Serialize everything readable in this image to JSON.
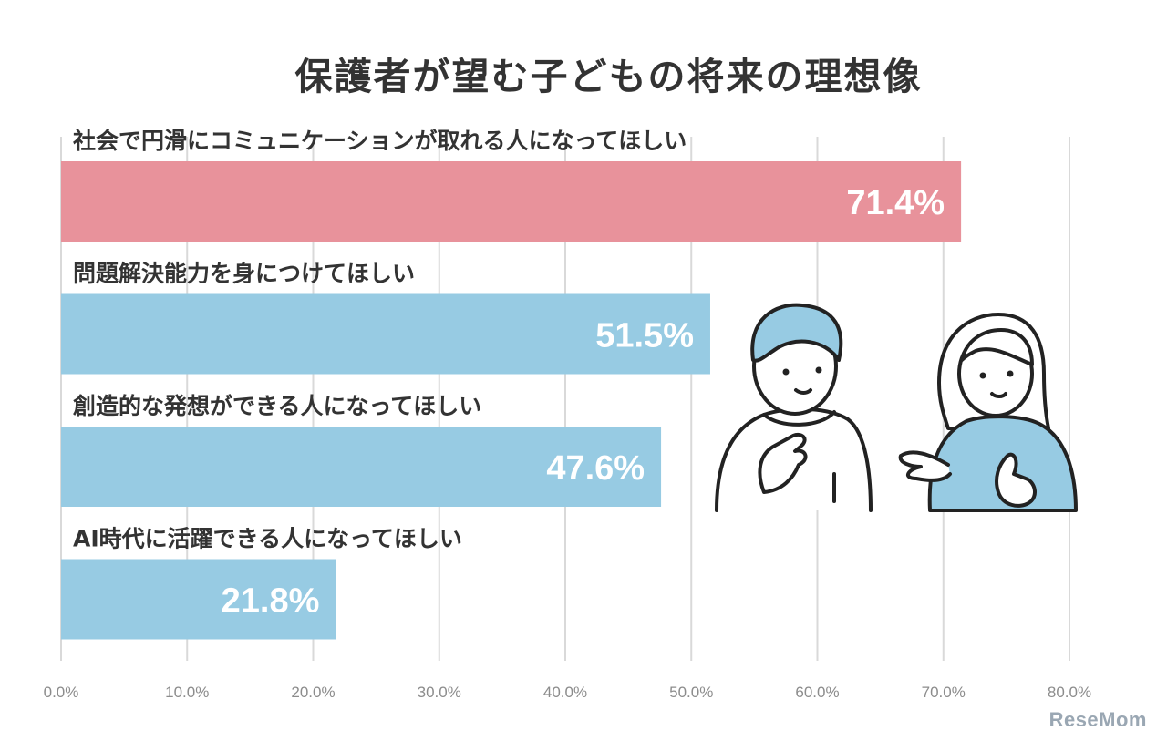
{
  "colors": {
    "highlight": "#e8929b",
    "bar": "#97cbe3",
    "grid": "#d9d9d9",
    "value_label": "#ffffff",
    "category_label": "#333333",
    "tick_label": "#8c8c8c",
    "title": "#333333"
  },
  "watermark": "ReseMom",
  "chart_data": {
    "type": "bar",
    "orientation": "horizontal",
    "title": "保護者が望む子どもの将来の理想像",
    "categories": [
      "社会で円滑にコミュニケーションが取れる人になってほしい",
      "問題解決能力を身につけてほしい",
      "創造的な発想ができる人になってほしい",
      "AI時代に活躍できる人になってほしい"
    ],
    "values": [
      71.4,
      51.5,
      47.6,
      21.8
    ],
    "value_labels": [
      "71.4%",
      "51.5%",
      "47.6%",
      "21.8%"
    ],
    "highlight_index": 0,
    "xlim": [
      0,
      80
    ],
    "x_ticks": [
      0,
      10,
      20,
      30,
      40,
      50,
      60,
      70,
      80
    ],
    "x_tick_labels": [
      "0.0%",
      "10.0%",
      "20.0%",
      "30.0%",
      "40.0%",
      "50.0%",
      "60.0%",
      "70.0%",
      "80.0%"
    ],
    "grid": true,
    "legend": "none"
  }
}
